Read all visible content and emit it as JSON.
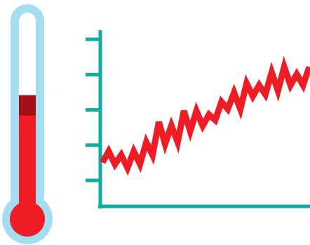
{
  "colors": {
    "background": "#ffffff",
    "thermometer_outline": "#a4dcf0",
    "thermometer_tube": "#ffffff",
    "mercury": "#ee1c25",
    "mercury_cap": "#a50e15",
    "axis": "#10aea0",
    "trend_line": "#ee1c25"
  },
  "icons": {
    "thermometer": "thermometer-icon",
    "chart": "rising-temperature-chart-icon"
  },
  "thermometer": {
    "fill_level": 0.6
  },
  "chart_data": {
    "type": "line",
    "title": "",
    "xlabel": "",
    "ylabel": "",
    "y_tick_count": 5,
    "x": [
      0,
      1,
      2,
      3,
      4,
      5,
      6,
      7,
      8,
      9,
      10,
      11,
      12,
      13,
      14,
      15,
      16,
      17,
      18,
      19,
      20,
      21,
      22,
      23,
      24,
      25,
      26,
      27,
      28,
      29,
      30,
      31,
      32,
      33
    ],
    "series": [
      {
        "values": [
          1.2,
          1.5,
          1.15,
          1.4,
          1.05,
          1.5,
          1.15,
          1.75,
          1.4,
          2.3,
          1.7,
          2.2,
          1.75,
          2.6,
          2.05,
          2.6,
          2.2,
          2.5,
          2.35,
          2.85,
          2.65,
          3.1,
          2.65,
          3.35,
          3.0,
          3.3,
          3.05,
          3.65,
          3.15,
          3.8,
          3.3,
          3.6,
          3.3,
          3.8
        ]
      }
    ],
    "ylim": [
      0,
      4.8
    ],
    "grid": false,
    "legend": "none"
  }
}
